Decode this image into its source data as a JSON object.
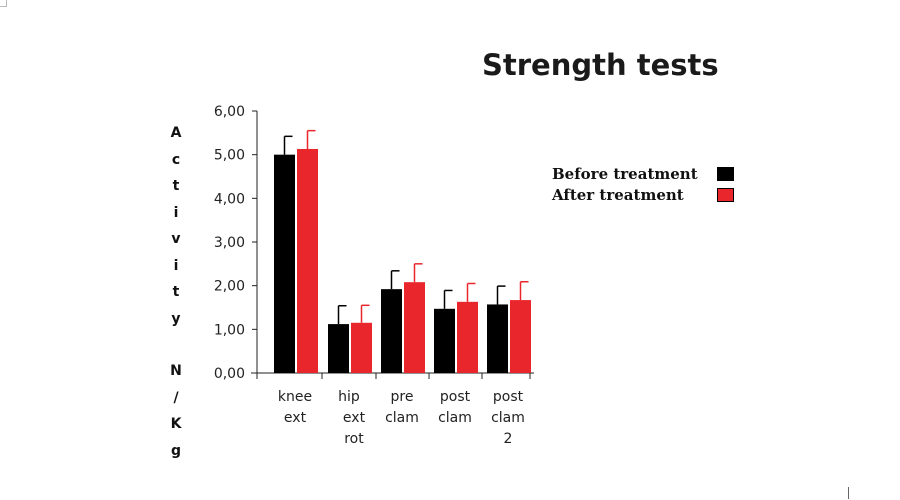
{
  "chart_data": {
    "type": "bar",
    "title": "Strength tests",
    "ylabel": "Activity N/Kg",
    "ylim": [
      0,
      6
    ],
    "yticks": [
      "0,00",
      "1,00",
      "2,00",
      "3,00",
      "4,00",
      "5,00",
      "6,00"
    ],
    "categories": [
      [
        "knee",
        "ext"
      ],
      [
        "hip",
        "ext",
        "rot"
      ],
      [
        "pre",
        "clam"
      ],
      [
        "post",
        "clam"
      ],
      [
        "post",
        "clam",
        "2"
      ]
    ],
    "series": [
      {
        "name": "Before treatment",
        "color": "#000000",
        "values": [
          5.0,
          1.12,
          1.92,
          1.47,
          1.57
        ],
        "errors": [
          0.42,
          0.42,
          0.42,
          0.42,
          0.42
        ]
      },
      {
        "name": "After treatment",
        "color": "#e8262b",
        "values": [
          5.13,
          1.15,
          2.08,
          1.63,
          1.67
        ],
        "errors": [
          0.42,
          0.4,
          0.42,
          0.42,
          0.42
        ]
      }
    ],
    "legend_position": "right",
    "grid": false
  }
}
